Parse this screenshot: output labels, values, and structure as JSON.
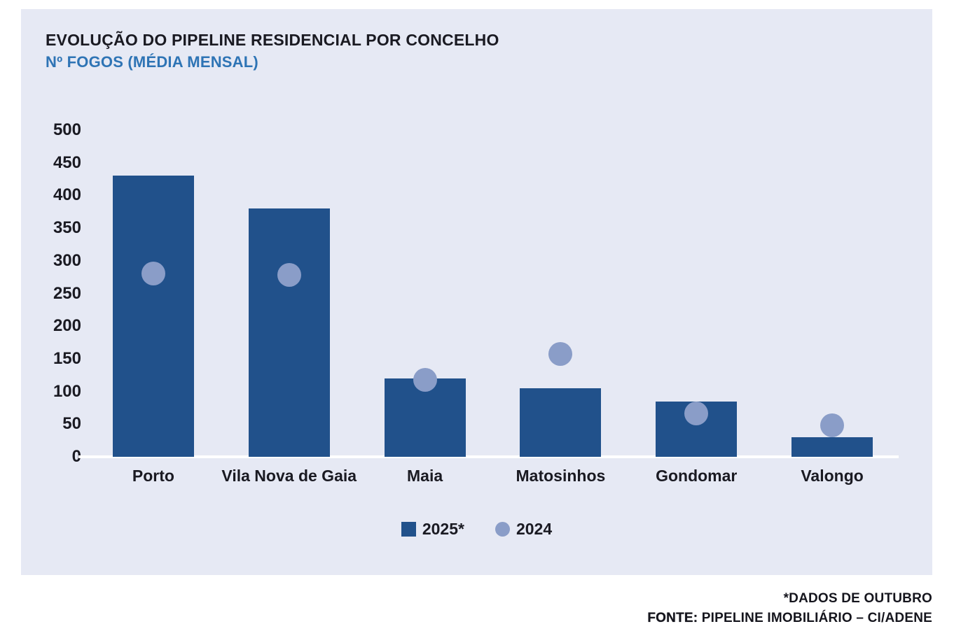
{
  "header": {
    "title": "EVOLUÇÃO DO PIPELINE RESIDENCIAL POR CONCELHO",
    "subtitle": "Nº FOGOS (MÉDIA MENSAL)"
  },
  "chart_data": {
    "type": "bar",
    "title": "EVOLUÇÃO DO PIPELINE RESIDENCIAL POR CONCELHO",
    "subtitle": "Nº FOGOS (MÉDIA MENSAL)",
    "categories": [
      "Porto",
      "Vila Nova de Gaia",
      "Maia",
      "Matosinhos",
      "Gondomar",
      "Valongo"
    ],
    "series": [
      {
        "name": "2025*",
        "type": "bar",
        "marker": "square",
        "values": [
          430,
          380,
          120,
          105,
          85,
          30
        ]
      },
      {
        "name": "2024",
        "type": "scatter",
        "marker": "circle",
        "values": [
          280,
          278,
          118,
          157,
          66,
          48
        ]
      }
    ],
    "ylabel": "Nº FOGOS (MÉDIA MENSAL)",
    "ylim": [
      0,
      500
    ],
    "ytick_step": 50,
    "grid": false,
    "legend_position": "bottom-center"
  },
  "legend": {
    "items": [
      {
        "label": "2025*",
        "marker": "square"
      },
      {
        "label": "2024",
        "marker": "circle"
      }
    ]
  },
  "footer": {
    "note": "*DADOS DE OUTUBRO",
    "source_label": "FONTE:",
    "source_text": " PIPELINE IMOBILIÁRIO – CI/ADENE"
  },
  "colors": {
    "bar_2025": "#21518B",
    "dot_2024": "#8A9DC8",
    "panel_bg": "#E6E9F4",
    "subtitle_blue": "#2E74B5",
    "text_dark": "#1A1A22",
    "axis_line": "#FFFFFF",
    "page_bg": "#FFFFFF"
  }
}
